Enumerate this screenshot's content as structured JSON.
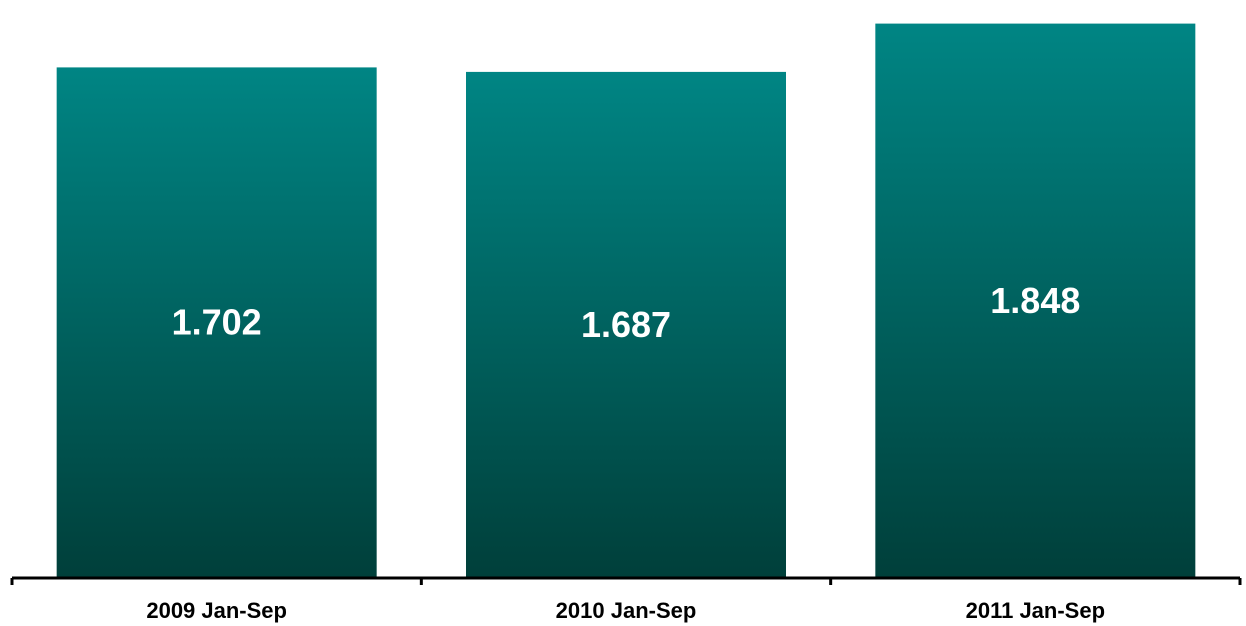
{
  "chart_data": {
    "type": "bar",
    "categories": [
      "2009 Jan-Sep",
      "2010 Jan-Sep",
      "2011 Jan-Sep"
    ],
    "values": [
      1.702,
      1.687,
      1.848
    ],
    "value_labels": [
      "1.702",
      "1.687",
      "1.848"
    ],
    "title": "",
    "xlabel": "",
    "ylabel": "",
    "ylim": [
      0,
      1.9
    ],
    "grid": false,
    "legend": "none",
    "colors": {
      "bar_top": "#008584",
      "bar_bottom": "#003f3a",
      "axis": "#000000",
      "value_label": "#ffffff"
    }
  }
}
